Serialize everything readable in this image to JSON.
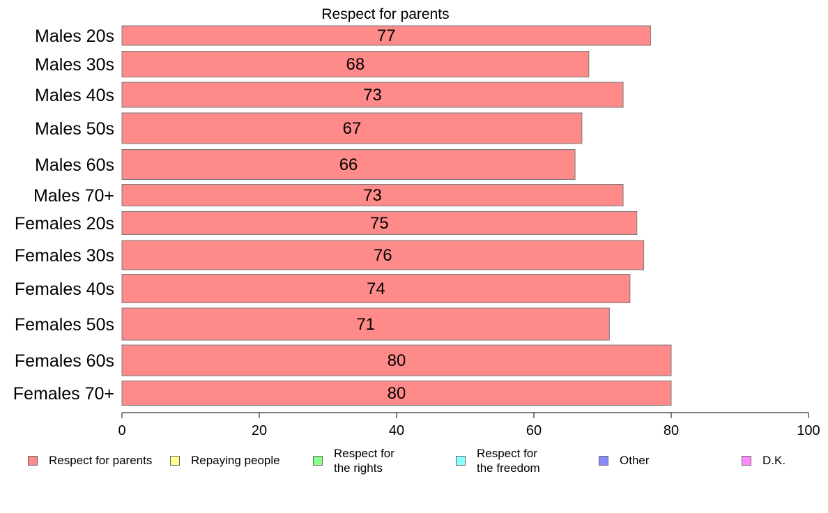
{
  "chart_data": {
    "type": "bar",
    "orientation": "horizontal",
    "title": "Respect for parents",
    "categories": [
      "Males 20s",
      "Males 30s",
      "Males 40s",
      "Males 50s",
      "Males 60s",
      "Males 70+",
      "Females 20s",
      "Females 30s",
      "Females 40s",
      "Females 50s",
      "Females 60s",
      "Females 70+"
    ],
    "values": [
      77,
      68,
      73,
      67,
      66,
      73,
      75,
      76,
      74,
      71,
      80,
      80
    ],
    "labels": [
      "77",
      "68",
      "73",
      "67",
      "66",
      "73",
      "75",
      "76",
      "74",
      "71",
      "80",
      "80"
    ],
    "xlim": [
      0,
      100
    ],
    "xticks": [
      "0",
      "20",
      "40",
      "60",
      "80",
      "100"
    ],
    "grid": false,
    "bar_color": "#ff8a8a",
    "legend_position": "bottom",
    "legend": [
      {
        "label": "Respect for parents",
        "color": "#ff8a8a"
      },
      {
        "label": "Repaying people",
        "color": "#ffff8a"
      },
      {
        "label": "Respect for\nthe rights",
        "color": "#8aff8a"
      },
      {
        "label": "Respect for\nthe freedom",
        "color": "#8affff"
      },
      {
        "label": "Other",
        "color": "#8a8aff"
      },
      {
        "label": "D.K.",
        "color": "#ff8aff"
      }
    ]
  }
}
